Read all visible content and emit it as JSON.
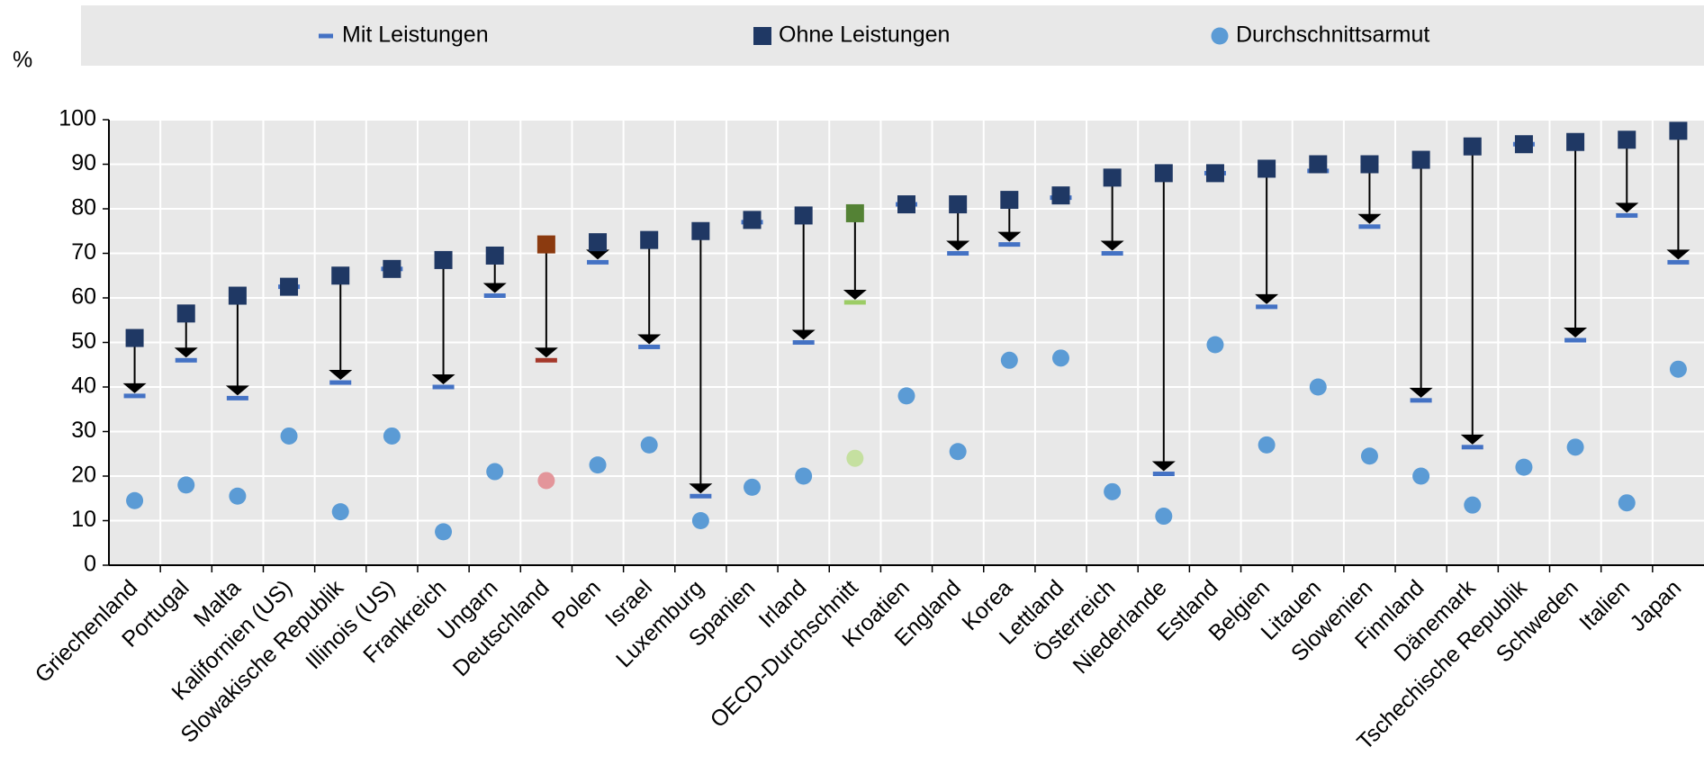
{
  "chart_data": {
    "type": "dot-arrow",
    "y_axis_label": "%",
    "categories": [
      "Griechenland",
      "Portugal",
      "Malta",
      "Kalifornien (US)",
      "Slowakische Republik",
      "Illinois (US)",
      "Frankreich",
      "Ungarn",
      "Deutschland",
      "Polen",
      "Israel",
      "Luxemburg",
      "Spanien",
      "Irland",
      "OECD-Durchschnitt",
      "Kroatien",
      "England",
      "Korea",
      "Lettland",
      "Österreich",
      "Niederlande",
      "Estland",
      "Belgien",
      "Litauen",
      "Slowenien",
      "Finnland",
      "Dänemark",
      "Tschechische Republik",
      "Schweden",
      "Italien",
      "Japan"
    ],
    "series": [
      {
        "name": "Mit Leistungen",
        "color": "#4472c4",
        "marker": "dash",
        "values": [
          38,
          46,
          37.5,
          62.5,
          41,
          66.5,
          40,
          60.5,
          46,
          68,
          49,
          15.5,
          77,
          50,
          59,
          81,
          70,
          72,
          82.5,
          70,
          20.5,
          88,
          58,
          88.5,
          76,
          37,
          26.5,
          94.5,
          50.5,
          78.5,
          68
        ]
      },
      {
        "name": "Ohne Leistungen",
        "color": "#1f3864",
        "marker": "square",
        "values": [
          51,
          56.5,
          60.5,
          62.5,
          65,
          66.5,
          68.5,
          69.5,
          72,
          72.5,
          73,
          75,
          77.5,
          78.5,
          79,
          81,
          81,
          82,
          83,
          87,
          88,
          88,
          89,
          90,
          90,
          91,
          94,
          94.5,
          95,
          95.5,
          97.5
        ]
      },
      {
        "name": "Durchschnittsarmut",
        "color": "#5b9bd5",
        "marker": "circle",
        "values": [
          14.5,
          18,
          15.5,
          29,
          12,
          29,
          7.5,
          21,
          19,
          22.5,
          27,
          10,
          17.5,
          20,
          24,
          38,
          25.5,
          46,
          46.5,
          16.5,
          11,
          49.5,
          27,
          40,
          24.5,
          20,
          13.5,
          22,
          26.5,
          14,
          44
        ]
      }
    ],
    "highlights": [
      {
        "category": "Deutschland",
        "colors": [
          "#a5382a",
          "#8b3a0f",
          "#e3959a"
        ]
      },
      {
        "category": "OECD-Durchschnitt",
        "colors": [
          "#9ccc65",
          "#548235",
          "#c5e0a0"
        ]
      }
    ],
    "ylim": [
      0,
      100
    ],
    "yticks": [
      0,
      10,
      20,
      30,
      40,
      50,
      60,
      70,
      80,
      90,
      100
    ],
    "grid": true
  }
}
